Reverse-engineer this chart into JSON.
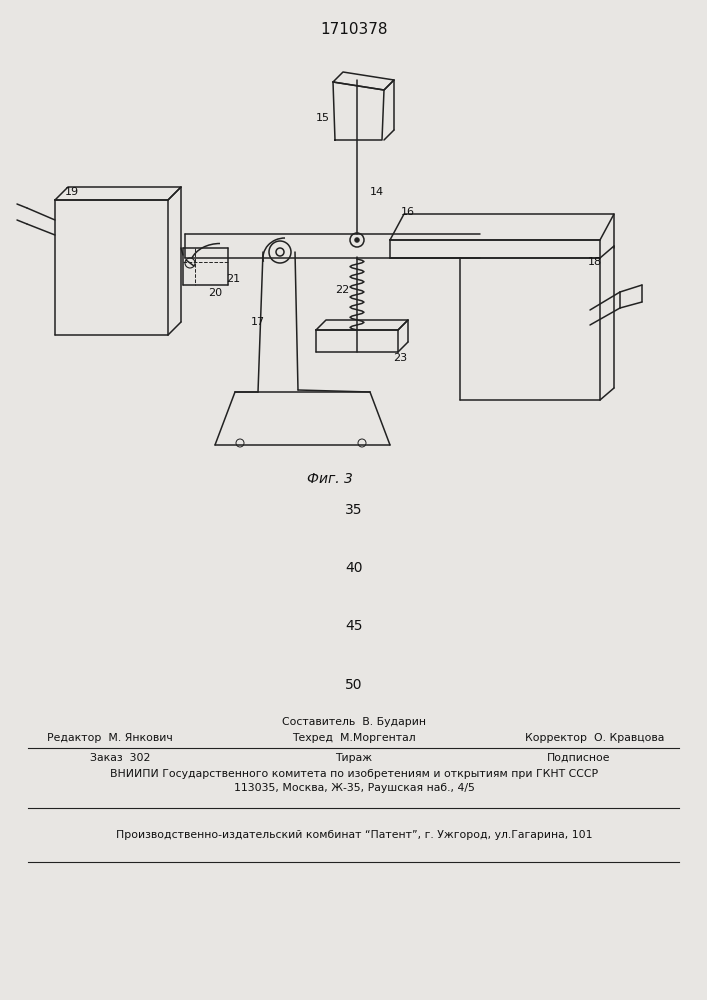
{
  "patent_number": "1710378",
  "fig_caption": "Фиг. 3",
  "numbers_35": "35",
  "numbers_40": "40",
  "numbers_45": "45",
  "numbers_50": "50",
  "footer_line1_center": "Составитель  В. Бударин",
  "footer_line2_center": "Техред  М.Моргентал",
  "footer_line1_left": "Редактор  М. Янкович",
  "footer_line1_right": "Корректор  О. Кравцова",
  "footer_line3_left": "Заказ  302",
  "footer_line3_center": "Тираж",
  "footer_line3_right": "Подписное",
  "footer_line4": "ВНИИПИ Государственного комитета по изобретениям и открытиям при ГКНТ СССР",
  "footer_line5": "113035, Москва, Ж-35, Раушская наб., 4/5",
  "footer_line6": "Производственно-издательский комбинат “Патент”, г. Ужгород, ул.Гагарина, 101",
  "bg_color": "#e8e6e3",
  "line_color": "#222222",
  "label_color": "#111111"
}
